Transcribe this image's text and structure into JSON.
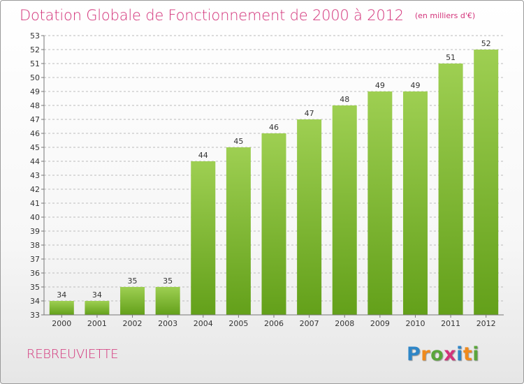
{
  "header": {
    "title": "Dotation Globale de Fonctionnement de 2000 à 2012",
    "unit": "(en milliers d'€)"
  },
  "location": "REBREUVIETTE",
  "logo": {
    "text": "Proxiti",
    "letters": [
      "P",
      "r",
      "o",
      "x",
      "i",
      "t",
      "i"
    ],
    "colors": [
      "#2f86c7",
      "#f08a1c",
      "#5aa63c",
      "#d3337a",
      "#2f86c7",
      "#f08a1c",
      "#5aa63c"
    ]
  },
  "colors": {
    "accent": "#d3337a",
    "bar_top": "#9ecf52",
    "bar_bottom": "#63a01a",
    "grid": "#bbbbbb",
    "axis": "#777777"
  },
  "chart_data": {
    "type": "bar",
    "categories": [
      "2000",
      "2001",
      "2002",
      "2003",
      "2004",
      "2005",
      "2006",
      "2007",
      "2008",
      "2009",
      "2010",
      "2011",
      "2012"
    ],
    "values": [
      34,
      34,
      35,
      35,
      44,
      45,
      46,
      47,
      48,
      49,
      49,
      51,
      52
    ],
    "ylim": [
      33,
      53
    ],
    "yticks": [
      33,
      34,
      35,
      36,
      37,
      38,
      39,
      40,
      41,
      42,
      43,
      44,
      45,
      46,
      47,
      48,
      49,
      50,
      51,
      52,
      53
    ],
    "grid": true,
    "xlabel": "",
    "ylabel": "",
    "data_labels": true
  }
}
